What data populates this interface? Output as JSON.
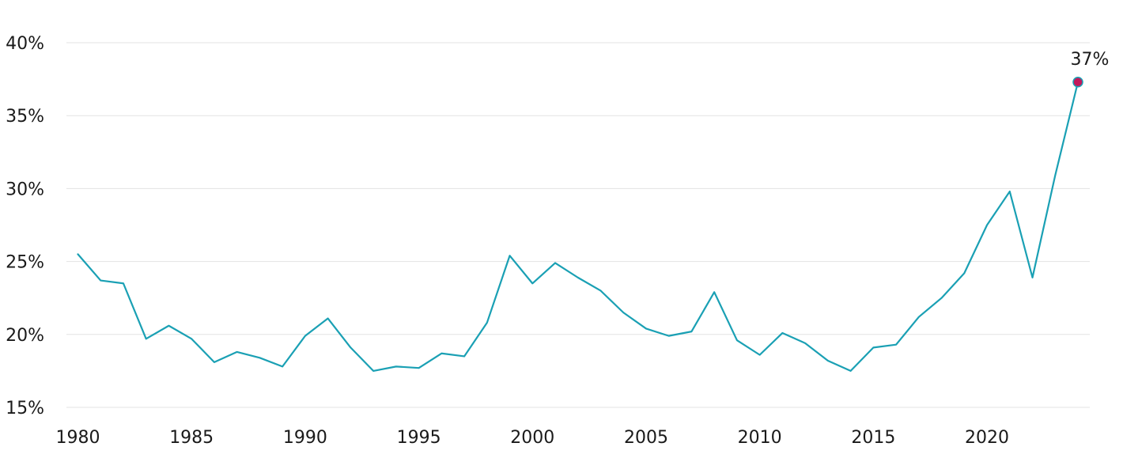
{
  "chart_data": {
    "type": "line",
    "title": "",
    "xlabel": "",
    "ylabel": "",
    "xlim": [
      1980,
      2024
    ],
    "ylim": [
      15,
      40
    ],
    "grid": true,
    "x_ticks": [
      1980,
      1985,
      1990,
      1995,
      2000,
      2005,
      2010,
      2015,
      2020
    ],
    "x_tick_labels": [
      "1980",
      "1985",
      "1990",
      "1995",
      "2000",
      "2005",
      "2010",
      "2015",
      "2020"
    ],
    "y_ticks": [
      15,
      20,
      25,
      30,
      35,
      40
    ],
    "y_tick_labels": [
      "15%",
      "20%",
      "25%",
      "30%",
      "35%",
      "40%"
    ],
    "series": [
      {
        "color": "#1aa0b4",
        "x": [
          1980,
          1981,
          1982,
          1983,
          1984,
          1985,
          1986,
          1987,
          1988,
          1989,
          1990,
          1991,
          1992,
          1993,
          1994,
          1995,
          1996,
          1997,
          1998,
          1999,
          2000,
          2001,
          2002,
          2003,
          2004,
          2005,
          2006,
          2007,
          2008,
          2009,
          2010,
          2011,
          2012,
          2013,
          2014,
          2015,
          2016,
          2017,
          2018,
          2019,
          2020,
          2021,
          2022,
          2023,
          2024
        ],
        "values": [
          25.5,
          23.7,
          23.5,
          19.7,
          20.6,
          19.7,
          18.1,
          18.8,
          18.4,
          17.8,
          19.9,
          21.1,
          19.1,
          17.5,
          17.8,
          17.7,
          18.7,
          18.5,
          20.8,
          25.4,
          23.5,
          24.9,
          23.9,
          23.0,
          21.5,
          20.4,
          19.9,
          20.2,
          22.9,
          19.6,
          18.6,
          20.1,
          19.4,
          18.2,
          17.5,
          19.1,
          19.3,
          21.2,
          22.5,
          24.2,
          27.5,
          29.8,
          23.9,
          30.9,
          37.3
        ]
      }
    ],
    "highlight": {
      "x": 2024,
      "value": 37.3,
      "label": "37%",
      "marker_color": "#c2185b"
    }
  }
}
